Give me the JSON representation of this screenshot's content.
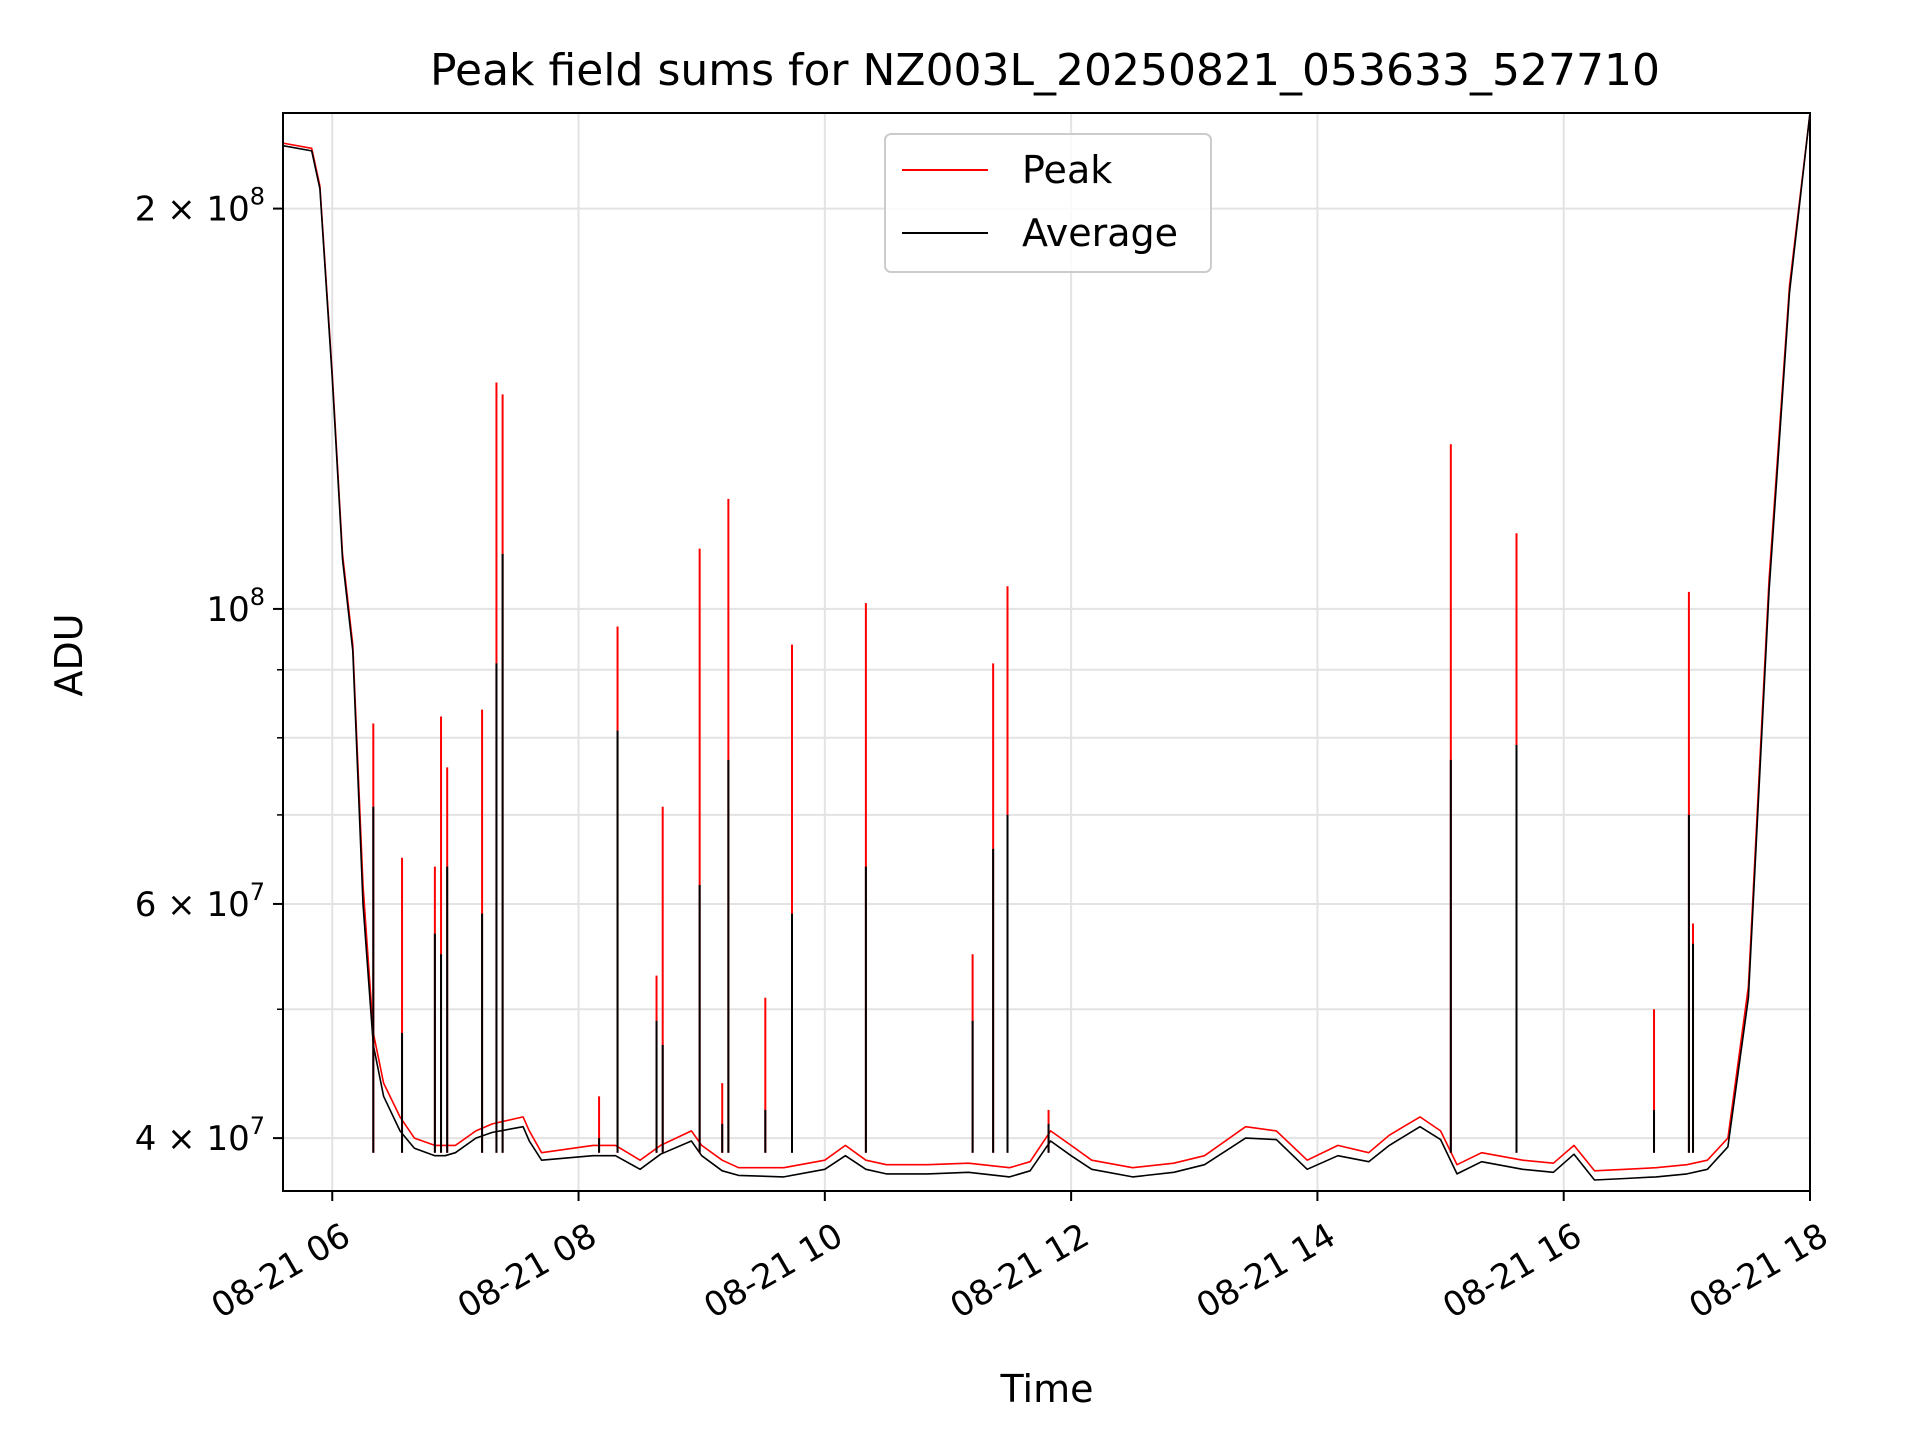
{
  "chart_data": {
    "type": "line",
    "title": "Peak field sums for NZ003L_20250821_053633_527710",
    "xlabel": "Time",
    "ylabel": "ADU",
    "yscale": "log",
    "ylim": [
      36500000,
      236000000
    ],
    "xlim": [
      "2025-08-21 05:36",
      "2025-08-21 18:00"
    ],
    "grid": true,
    "legend_position": "top-center",
    "x_ticks": [
      {
        "t": "2025-08-21 06:00",
        "label": "08-21 06"
      },
      {
        "t": "2025-08-21 08:00",
        "label": "08-21 08"
      },
      {
        "t": "2025-08-21 10:00",
        "label": "08-21 10"
      },
      {
        "t": "2025-08-21 12:00",
        "label": "08-21 12"
      },
      {
        "t": "2025-08-21 14:00",
        "label": "08-21 14"
      },
      {
        "t": "2025-08-21 16:00",
        "label": "08-21 16"
      },
      {
        "t": "2025-08-21 18:00",
        "label": "08-21 18"
      }
    ],
    "y_ticks": [
      {
        "value": 40000000,
        "base": "4 × 10",
        "exp": "7"
      },
      {
        "value": 60000000,
        "base": "6 × 10",
        "exp": "7"
      },
      {
        "value": 100000000,
        "base": "10",
        "exp": "8"
      },
      {
        "value": 200000000,
        "base": "2 × 10",
        "exp": "8"
      }
    ],
    "y_minor_ticks": [
      50000000,
      70000000,
      80000000,
      90000000
    ],
    "series": [
      {
        "name": "Peak",
        "color": "#ff0000",
        "x": [
          "2025-08-21 05:36",
          "2025-08-21 05:50",
          "2025-08-21 05:54",
          "2025-08-21 06:00",
          "2025-08-21 06:05",
          "2025-08-21 06:10",
          "2025-08-21 06:15",
          "2025-08-21 06:20",
          "2025-08-21 06:25",
          "2025-08-21 06:33",
          "2025-08-21 06:40",
          "2025-08-21 06:50",
          "2025-08-21 06:55",
          "2025-08-21 07:00",
          "2025-08-21 07:10",
          "2025-08-21 07:18",
          "2025-08-21 07:33",
          "2025-08-21 07:36",
          "2025-08-21 07:42",
          "2025-08-21 08:07",
          "2025-08-21 08:18",
          "2025-08-21 08:30",
          "2025-08-21 08:40",
          "2025-08-21 08:55",
          "2025-08-21 09:00",
          "2025-08-21 09:10",
          "2025-08-21 09:18",
          "2025-08-21 09:40",
          "2025-08-21 10:00",
          "2025-08-21 10:10",
          "2025-08-21 10:20",
          "2025-08-21 10:30",
          "2025-08-21 10:50",
          "2025-08-21 11:10",
          "2025-08-21 11:30",
          "2025-08-21 11:40",
          "2025-08-21 11:50",
          "2025-08-21 12:00",
          "2025-08-21 12:10",
          "2025-08-21 12:30",
          "2025-08-21 12:50",
          "2025-08-21 13:05",
          "2025-08-21 13:25",
          "2025-08-21 13:40",
          "2025-08-21 13:55",
          "2025-08-21 14:10",
          "2025-08-21 14:25",
          "2025-08-21 14:35",
          "2025-08-21 14:50",
          "2025-08-21 15:00",
          "2025-08-21 15:08",
          "2025-08-21 15:20",
          "2025-08-21 15:40",
          "2025-08-21 15:55",
          "2025-08-21 16:05",
          "2025-08-21 16:15",
          "2025-08-21 16:30",
          "2025-08-21 16:45",
          "2025-08-21 17:00",
          "2025-08-21 17:10",
          "2025-08-21 17:20",
          "2025-08-21 17:30",
          "2025-08-21 17:40",
          "2025-08-21 17:50",
          "2025-08-21 18:00"
        ],
        "y": [
          224000000,
          222000000,
          208000000,
          150000000,
          110000000,
          94000000,
          62000000,
          48000000,
          44000000,
          41500000,
          40000000,
          39500000,
          39500000,
          39500000,
          40500000,
          41000000,
          41500000,
          40500000,
          39000000,
          39500000,
          39500000,
          38500000,
          39500000,
          40500000,
          39500000,
          38500000,
          38000000,
          38000000,
          38500000,
          39500000,
          38500000,
          38200000,
          38200000,
          38300000,
          38000000,
          38400000,
          40500000,
          39500000,
          38500000,
          38000000,
          38300000,
          38800000,
          40800000,
          40500000,
          38500000,
          39500000,
          39000000,
          40200000,
          41500000,
          40500000,
          38200000,
          39000000,
          38500000,
          38300000,
          39500000,
          37800000,
          37900000,
          38000000,
          38200000,
          38500000,
          40000000,
          52000000,
          105000000,
          175000000,
          236000000
        ]
      },
      {
        "name": "Average",
        "color": "#000000",
        "x": [
          "2025-08-21 05:36",
          "2025-08-21 05:50",
          "2025-08-21 05:54",
          "2025-08-21 06:00",
          "2025-08-21 06:05",
          "2025-08-21 06:10",
          "2025-08-21 06:15",
          "2025-08-21 06:20",
          "2025-08-21 06:25",
          "2025-08-21 06:33",
          "2025-08-21 06:40",
          "2025-08-21 06:50",
          "2025-08-21 06:55",
          "2025-08-21 07:00",
          "2025-08-21 07:10",
          "2025-08-21 07:18",
          "2025-08-21 07:33",
          "2025-08-21 07:36",
          "2025-08-21 07:42",
          "2025-08-21 08:07",
          "2025-08-21 08:18",
          "2025-08-21 08:30",
          "2025-08-21 08:40",
          "2025-08-21 08:55",
          "2025-08-21 09:00",
          "2025-08-21 09:10",
          "2025-08-21 09:18",
          "2025-08-21 09:40",
          "2025-08-21 10:00",
          "2025-08-21 10:10",
          "2025-08-21 10:20",
          "2025-08-21 10:30",
          "2025-08-21 10:50",
          "2025-08-21 11:10",
          "2025-08-21 11:30",
          "2025-08-21 11:40",
          "2025-08-21 11:50",
          "2025-08-21 12:00",
          "2025-08-21 12:10",
          "2025-08-21 12:30",
          "2025-08-21 12:50",
          "2025-08-21 13:05",
          "2025-08-21 13:25",
          "2025-08-21 13:40",
          "2025-08-21 13:55",
          "2025-08-21 14:10",
          "2025-08-21 14:25",
          "2025-08-21 14:35",
          "2025-08-21 14:50",
          "2025-08-21 15:00",
          "2025-08-21 15:08",
          "2025-08-21 15:20",
          "2025-08-21 15:40",
          "2025-08-21 15:55",
          "2025-08-21 16:05",
          "2025-08-21 16:15",
          "2025-08-21 16:30",
          "2025-08-21 16:45",
          "2025-08-21 17:00",
          "2025-08-21 17:10",
          "2025-08-21 17:20",
          "2025-08-21 17:30",
          "2025-08-21 17:40",
          "2025-08-21 17:50",
          "2025-08-21 18:00"
        ],
        "y": [
          223000000,
          221000000,
          207000000,
          149000000,
          109000000,
          93000000,
          60000000,
          47000000,
          43000000,
          40500000,
          39300000,
          38800000,
          38800000,
          39000000,
          40000000,
          40400000,
          40800000,
          39800000,
          38500000,
          38800000,
          38800000,
          37900000,
          38900000,
          39800000,
          38800000,
          37800000,
          37500000,
          37400000,
          37900000,
          38800000,
          37900000,
          37600000,
          37600000,
          37700000,
          37400000,
          37800000,
          39800000,
          38800000,
          37900000,
          37400000,
          37700000,
          38200000,
          40000000,
          39900000,
          37900000,
          38800000,
          38400000,
          39500000,
          40800000,
          39900000,
          37600000,
          38400000,
          37900000,
          37700000,
          38900000,
          37200000,
          37300000,
          37400000,
          37600000,
          37900000,
          39400000,
          51000000,
          103000000,
          173000000,
          236000000
        ]
      }
    ],
    "spikes": [
      {
        "t": "2025-08-21 06:20",
        "peak": 82000000,
        "avg": 71000000
      },
      {
        "t": "2025-08-21 06:34",
        "peak": 65000000,
        "avg": 48000000
      },
      {
        "t": "2025-08-21 06:50",
        "peak": 64000000,
        "avg": 57000000
      },
      {
        "t": "2025-08-21 06:53",
        "peak": 83000000,
        "avg": 55000000
      },
      {
        "t": "2025-08-21 06:56",
        "peak": 76000000,
        "avg": 64000000
      },
      {
        "t": "2025-08-21 07:13",
        "peak": 84000000,
        "avg": 59000000
      },
      {
        "t": "2025-08-21 07:20",
        "peak": 148000000,
        "avg": 91000000
      },
      {
        "t": "2025-08-21 07:23",
        "peak": 145000000,
        "avg": 110000000
      },
      {
        "t": "2025-08-21 08:10",
        "peak": 43000000,
        "avg": 40000000
      },
      {
        "t": "2025-08-21 08:19",
        "peak": 97000000,
        "avg": 81000000
      },
      {
        "t": "2025-08-21 08:38",
        "peak": 53000000,
        "avg": 49000000
      },
      {
        "t": "2025-08-21 08:41",
        "peak": 71000000,
        "avg": 47000000
      },
      {
        "t": "2025-08-21 08:59",
        "peak": 111000000,
        "avg": 62000000
      },
      {
        "t": "2025-08-21 09:10",
        "peak": 44000000,
        "avg": 41000000
      },
      {
        "t": "2025-08-21 09:13",
        "peak": 121000000,
        "avg": 77000000
      },
      {
        "t": "2025-08-21 09:31",
        "peak": 51000000,
        "avg": 42000000
      },
      {
        "t": "2025-08-21 09:44",
        "peak": 94000000,
        "avg": 59000000
      },
      {
        "t": "2025-08-21 10:20",
        "peak": 101000000,
        "avg": 64000000
      },
      {
        "t": "2025-08-21 11:12",
        "peak": 55000000,
        "avg": 49000000
      },
      {
        "t": "2025-08-21 11:22",
        "peak": 91000000,
        "avg": 66000000
      },
      {
        "t": "2025-08-21 11:29",
        "peak": 104000000,
        "avg": 70000000
      },
      {
        "t": "2025-08-21 11:49",
        "peak": 42000000,
        "avg": 41000000
      },
      {
        "t": "2025-08-21 15:05",
        "peak": 133000000,
        "avg": 77000000
      },
      {
        "t": "2025-08-21 15:37",
        "peak": 114000000,
        "avg": 79000000
      },
      {
        "t": "2025-08-21 16:44",
        "peak": 50000000,
        "avg": 42000000
      },
      {
        "t": "2025-08-21 17:01",
        "peak": 103000000,
        "avg": 70000000
      },
      {
        "t": "2025-08-21 17:03",
        "peak": 58000000,
        "avg": 56000000
      }
    ]
  }
}
